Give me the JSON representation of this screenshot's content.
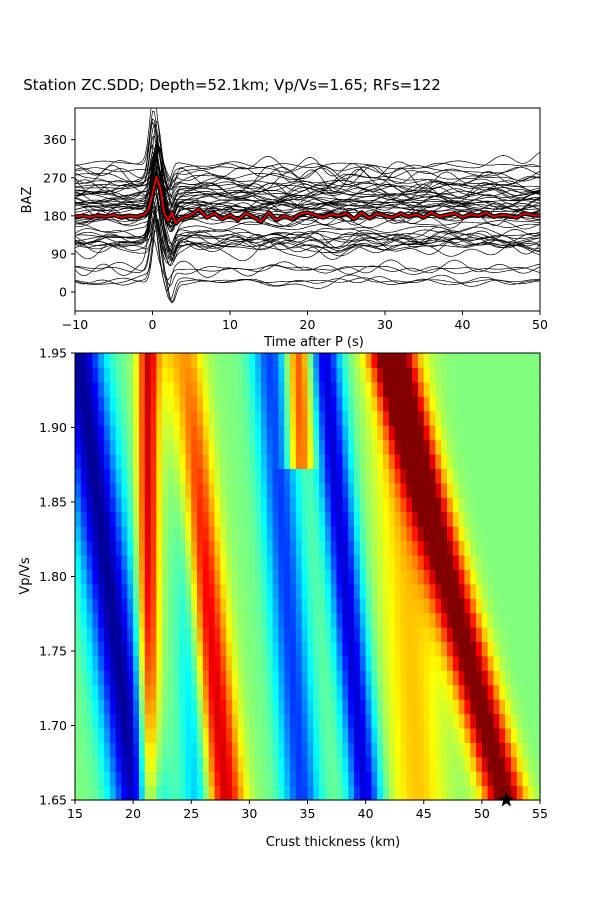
{
  "figure": {
    "title": "Station ZC.SDD; Depth=52.1km; Vp/Vs=1.65; RFs=122"
  },
  "chart_data": [
    {
      "type": "line",
      "panel": "receiver-functions",
      "xlabel": "Time after P (s)",
      "ylabel": "BAZ",
      "xlim": [
        -10,
        50
      ],
      "ylim": [
        -45,
        435
      ],
      "xticks": [
        -10,
        0,
        10,
        20,
        30,
        40,
        50
      ],
      "yticks": [
        0,
        90,
        180,
        270,
        360
      ],
      "num_traces": 60,
      "trace_color": "#000000",
      "stack": {
        "name": "stack",
        "color": "#e00000",
        "x": [
          -10,
          -9,
          -8,
          -7,
          -6,
          -5,
          -4,
          -3,
          -2,
          -1,
          -0.5,
          0,
          0.5,
          1,
          1.5,
          2,
          2.5,
          3,
          3.5,
          4,
          5,
          6,
          7,
          8,
          9,
          10,
          11,
          12,
          13,
          14,
          15,
          16,
          17,
          18,
          19,
          20,
          21,
          22,
          23,
          24,
          25,
          26,
          27,
          28,
          29,
          30,
          31,
          32,
          33,
          34,
          35,
          36,
          37,
          38,
          39,
          40,
          41,
          42,
          43,
          44,
          45,
          46,
          47,
          48,
          49,
          50
        ],
        "y": [
          178,
          180,
          177,
          181,
          178,
          182,
          176,
          180,
          178,
          184,
          196,
          232,
          272,
          246,
          188,
          168,
          188,
          162,
          172,
          176,
          182,
          196,
          176,
          186,
          172,
          182,
          170,
          186,
          178,
          166,
          188,
          170,
          180,
          172,
          184,
          188,
          182,
          176,
          184,
          180,
          186,
          172,
          188,
          174,
          186,
          180,
          176,
          186,
          178,
          184,
          176,
          188,
          178,
          182,
          186,
          176,
          184,
          180,
          188,
          178,
          182,
          180,
          176,
          186,
          182,
          180
        ]
      }
    },
    {
      "type": "heatmap",
      "panel": "h-k-stacking",
      "xlabel": "Crust thickness (km)",
      "ylabel": "Vp/Vs",
      "xlim": [
        15,
        55
      ],
      "ylim": [
        1.65,
        1.95
      ],
      "xticks": [
        15,
        20,
        25,
        30,
        35,
        40,
        45,
        50,
        55
      ],
      "yticks": [
        "1.65",
        "1.70",
        "1.75",
        "1.80",
        "1.85",
        "1.90",
        "1.95"
      ],
      "colormap": "jet",
      "grid_x_count": 80,
      "grid_y_count": 31,
      "best_fit_marker": {
        "symbol": "star",
        "h": 52.1,
        "k": 1.65,
        "color": "#000000"
      }
    }
  ]
}
